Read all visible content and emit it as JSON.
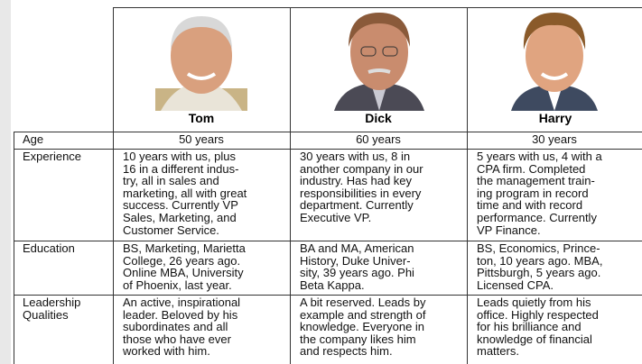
{
  "table": {
    "columns": [
      "Tom",
      "Dick",
      "Harry"
    ],
    "rows": [
      {
        "label": [
          "Age"
        ],
        "cells": [
          [
            "50 years"
          ],
          [
            "60 years"
          ],
          [
            "30 years"
          ]
        ]
      },
      {
        "label": [
          "Experience"
        ],
        "cells": [
          [
            "10 years with us, plus",
            "16 in a different indus-",
            "try, all in sales and",
            "marketing, all with great",
            "success. Currently VP",
            "Sales, Marketing, and",
            "Customer Service."
          ],
          [
            "30 years with us, 8 in",
            "another company in our",
            "industry. Has had key",
            "responsibilities in every",
            "department. Currently",
            "Executive VP."
          ],
          [
            "5 years with us, 4 with a",
            "CPA firm. Completed",
            "the management train-",
            "ing program in record",
            "time and with record",
            "performance. Currently",
            "VP Finance."
          ]
        ]
      },
      {
        "label": [
          "Education"
        ],
        "cells": [
          [
            "BS, Marketing, Marietta",
            "College, 26 years ago.",
            "Online MBA, University",
            "of Phoenix, last year."
          ],
          [
            "BA and MA, American",
            "History, Duke Univer-",
            "sity, 39 years ago. Phi",
            "Beta Kappa."
          ],
          [
            "BS, Economics, Prince-",
            "ton, 10 years ago. MBA,",
            "Pittsburgh, 5 years ago.",
            "Licensed CPA."
          ]
        ]
      },
      {
        "label": [
          "Leadership",
          "Qualities"
        ],
        "cells": [
          [
            "An active, inspirational",
            "leader. Beloved by his",
            "subordinates and all",
            "those who have ever",
            "worked with him."
          ],
          [
            "A bit reserved. Leads by",
            "example and strength of",
            "knowledge. Everyone in",
            "the company likes him",
            "and respects him."
          ],
          [
            "Leads quietly from his",
            "office. Highly respected",
            "for his brilliance and",
            "knowledge of financial",
            "matters."
          ]
        ]
      }
    ]
  }
}
